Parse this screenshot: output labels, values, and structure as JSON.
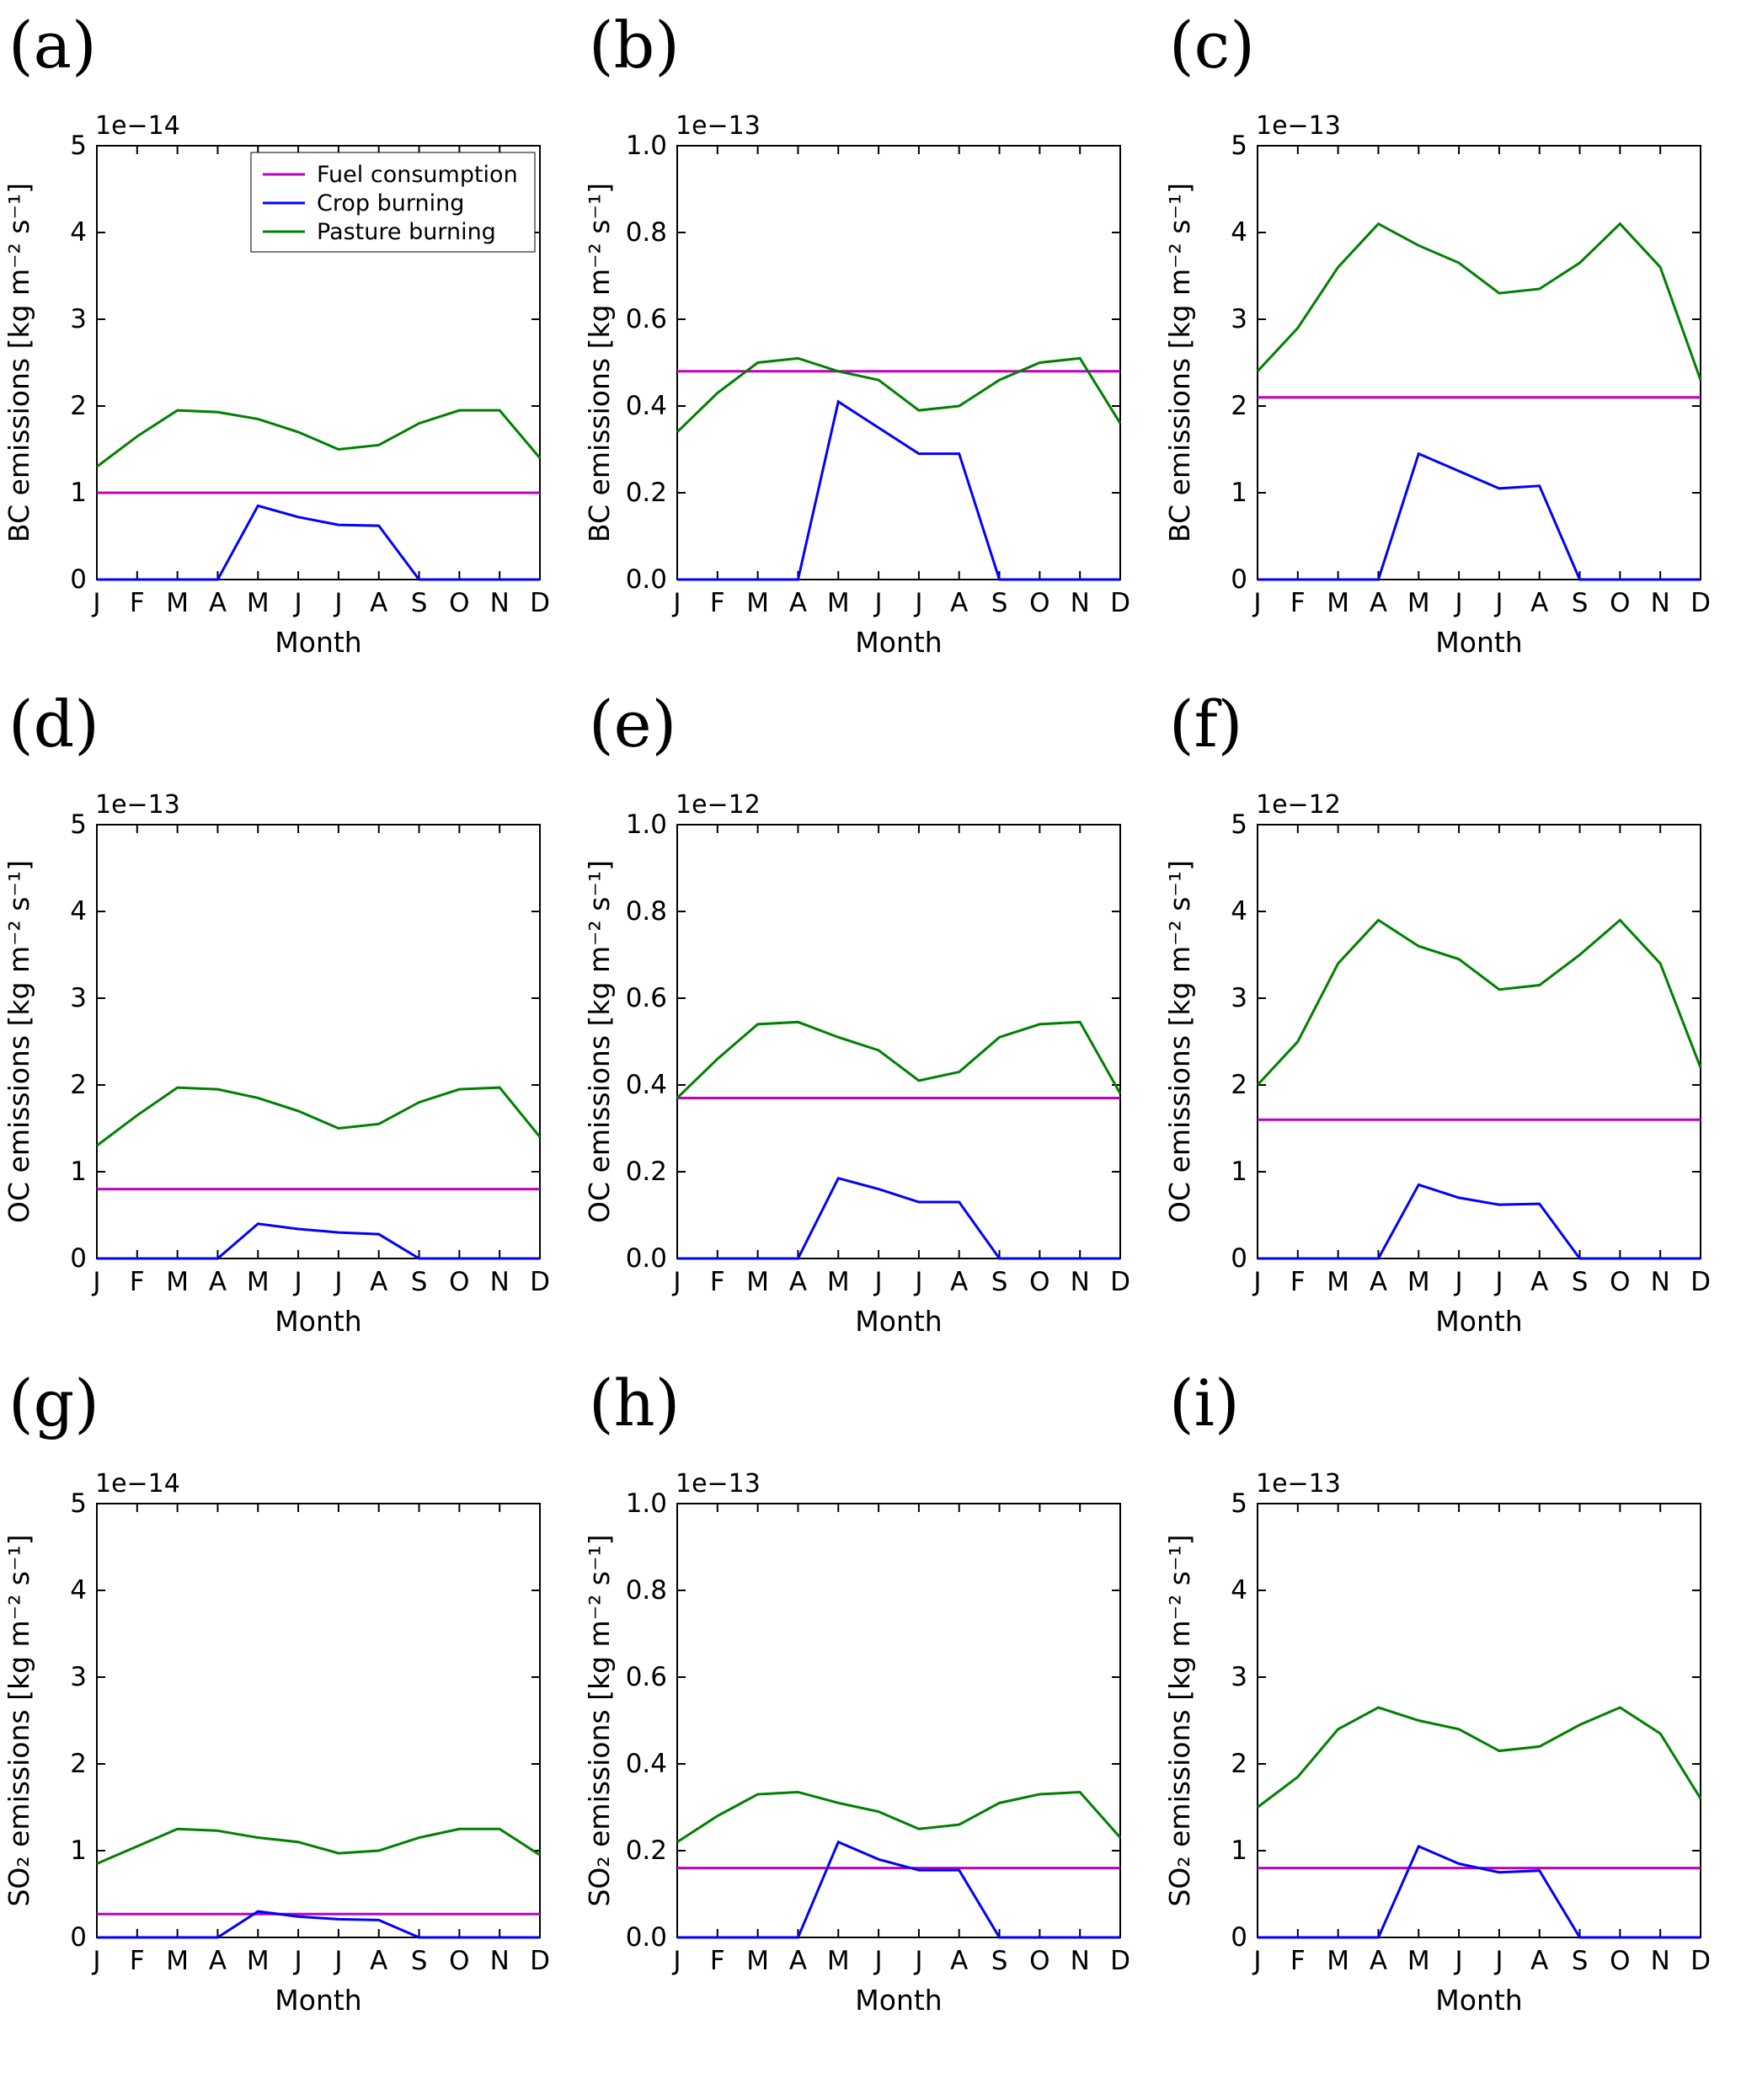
{
  "figure": {
    "months": [
      "J",
      "F",
      "M",
      "A",
      "M",
      "J",
      "J",
      "A",
      "S",
      "O",
      "N",
      "D"
    ],
    "xlabel": "Month",
    "legend_entries": [
      {
        "label": "Fuel consumption",
        "color": "#bf00bf"
      },
      {
        "label": "Crop burning",
        "color": "#0000ff"
      },
      {
        "label": "Pasture burning",
        "color": "#008000"
      }
    ],
    "colors": {
      "fuel": "#bf00bf",
      "crop": "#0000ff",
      "pasture": "#008000",
      "axis": "#000000"
    }
  },
  "chart_data": [
    {
      "panel": "(a)",
      "type": "line",
      "ylabel": "BC emissions [kg m⁻² s⁻¹]",
      "scale_label": "1e−14",
      "ylim": [
        0,
        5
      ],
      "yticks": [
        0,
        1,
        2,
        3,
        4,
        5
      ],
      "ytick_labels": [
        "0",
        "1",
        "2",
        "3",
        "4",
        "5"
      ],
      "legend": true,
      "series": [
        {
          "name": "Fuel consumption",
          "color": "#bf00bf",
          "constant": 1.0
        },
        {
          "name": "Crop burning",
          "color": "#0000ff",
          "values": [
            0,
            0,
            0,
            0,
            0.85,
            0.72,
            0.63,
            0.62,
            0,
            0,
            0,
            0
          ]
        },
        {
          "name": "Pasture burning",
          "color": "#008000",
          "values": [
            1.3,
            1.65,
            1.95,
            1.93,
            1.85,
            1.7,
            1.5,
            1.55,
            1.8,
            1.95,
            1.95,
            1.4
          ]
        }
      ]
    },
    {
      "panel": "(b)",
      "type": "line",
      "ylabel": "BC emissions [kg m⁻² s⁻¹]",
      "scale_label": "1e−13",
      "ylim": [
        0,
        1
      ],
      "yticks": [
        0,
        0.2,
        0.4,
        0.6,
        0.8,
        1.0
      ],
      "ytick_labels": [
        "0.0",
        "0.2",
        "0.4",
        "0.6",
        "0.8",
        "1.0"
      ],
      "legend": false,
      "series": [
        {
          "name": "Fuel consumption",
          "color": "#bf00bf",
          "constant": 0.48
        },
        {
          "name": "Crop burning",
          "color": "#0000ff",
          "values": [
            0,
            0,
            0,
            0,
            0.41,
            0.35,
            0.29,
            0.29,
            0,
            0,
            0,
            0
          ]
        },
        {
          "name": "Pasture burning",
          "color": "#008000",
          "values": [
            0.34,
            0.43,
            0.5,
            0.51,
            0.48,
            0.46,
            0.39,
            0.4,
            0.46,
            0.5,
            0.51,
            0.36
          ]
        }
      ]
    },
    {
      "panel": "(c)",
      "type": "line",
      "ylabel": "BC emissions [kg m⁻² s⁻¹]",
      "scale_label": "1e−13",
      "ylim": [
        0,
        5
      ],
      "yticks": [
        0,
        1,
        2,
        3,
        4,
        5
      ],
      "ytick_labels": [
        "0",
        "1",
        "2",
        "3",
        "4",
        "5"
      ],
      "legend": false,
      "series": [
        {
          "name": "Fuel consumption",
          "color": "#bf00bf",
          "constant": 2.1
        },
        {
          "name": "Crop burning",
          "color": "#0000ff",
          "values": [
            0,
            0,
            0,
            0,
            1.45,
            1.25,
            1.05,
            1.08,
            0,
            0,
            0,
            0
          ]
        },
        {
          "name": "Pasture burning",
          "color": "#008000",
          "values": [
            2.4,
            2.9,
            3.6,
            4.1,
            3.85,
            3.65,
            3.3,
            3.35,
            3.65,
            4.1,
            3.6,
            2.3
          ]
        }
      ]
    },
    {
      "panel": "(d)",
      "type": "line",
      "ylabel": "OC emissions [kg m⁻² s⁻¹]",
      "scale_label": "1e−13",
      "ylim": [
        0,
        5
      ],
      "yticks": [
        0,
        1,
        2,
        3,
        4,
        5
      ],
      "ytick_labels": [
        "0",
        "1",
        "2",
        "3",
        "4",
        "5"
      ],
      "legend": false,
      "series": [
        {
          "name": "Fuel consumption",
          "color": "#bf00bf",
          "constant": 0.8
        },
        {
          "name": "Crop burning",
          "color": "#0000ff",
          "values": [
            0,
            0,
            0,
            0,
            0.4,
            0.34,
            0.3,
            0.28,
            0,
            0,
            0,
            0
          ]
        },
        {
          "name": "Pasture burning",
          "color": "#008000",
          "values": [
            1.3,
            1.65,
            1.97,
            1.95,
            1.85,
            1.7,
            1.5,
            1.55,
            1.8,
            1.95,
            1.97,
            1.4
          ]
        }
      ]
    },
    {
      "panel": "(e)",
      "type": "line",
      "ylabel": "OC emissions [kg m⁻² s⁻¹]",
      "scale_label": "1e−12",
      "ylim": [
        0,
        1
      ],
      "yticks": [
        0,
        0.2,
        0.4,
        0.6,
        0.8,
        1.0
      ],
      "ytick_labels": [
        "0.0",
        "0.2",
        "0.4",
        "0.6",
        "0.8",
        "1.0"
      ],
      "legend": false,
      "series": [
        {
          "name": "Fuel consumption",
          "color": "#bf00bf",
          "constant": 0.37
        },
        {
          "name": "Crop burning",
          "color": "#0000ff",
          "values": [
            0,
            0,
            0,
            0,
            0.185,
            0.16,
            0.13,
            0.13,
            0,
            0,
            0,
            0
          ]
        },
        {
          "name": "Pasture burning",
          "color": "#008000",
          "values": [
            0.37,
            0.46,
            0.54,
            0.545,
            0.51,
            0.48,
            0.41,
            0.43,
            0.51,
            0.54,
            0.545,
            0.38
          ]
        }
      ]
    },
    {
      "panel": "(f)",
      "type": "line",
      "ylabel": "OC emissions [kg m⁻² s⁻¹]",
      "scale_label": "1e−12",
      "ylim": [
        0,
        5
      ],
      "yticks": [
        0,
        1,
        2,
        3,
        4,
        5
      ],
      "ytick_labels": [
        "0",
        "1",
        "2",
        "3",
        "4",
        "5"
      ],
      "legend": false,
      "series": [
        {
          "name": "Fuel consumption",
          "color": "#bf00bf",
          "constant": 1.6
        },
        {
          "name": "Crop burning",
          "color": "#0000ff",
          "values": [
            0,
            0,
            0,
            0,
            0.85,
            0.7,
            0.62,
            0.63,
            0,
            0,
            0,
            0
          ]
        },
        {
          "name": "Pasture burning",
          "color": "#008000",
          "values": [
            2.0,
            2.5,
            3.4,
            3.9,
            3.6,
            3.45,
            3.1,
            3.15,
            3.5,
            3.9,
            3.4,
            2.2
          ]
        }
      ]
    },
    {
      "panel": "(g)",
      "type": "line",
      "ylabel": "SO₂ emissions [kg m⁻² s⁻¹]",
      "scale_label": "1e−14",
      "ylim": [
        0,
        5
      ],
      "yticks": [
        0,
        1,
        2,
        3,
        4,
        5
      ],
      "ytick_labels": [
        "0",
        "1",
        "2",
        "3",
        "4",
        "5"
      ],
      "legend": false,
      "series": [
        {
          "name": "Fuel consumption",
          "color": "#bf00bf",
          "constant": 0.27
        },
        {
          "name": "Crop burning",
          "color": "#0000ff",
          "values": [
            0,
            0,
            0,
            0,
            0.3,
            0.24,
            0.21,
            0.2,
            0,
            0,
            0,
            0
          ]
        },
        {
          "name": "Pasture burning",
          "color": "#008000",
          "values": [
            0.85,
            1.05,
            1.25,
            1.23,
            1.15,
            1.1,
            0.97,
            1.0,
            1.15,
            1.25,
            1.25,
            0.95
          ]
        }
      ]
    },
    {
      "panel": "(h)",
      "type": "line",
      "ylabel": "SO₂ emissions [kg m⁻² s⁻¹]",
      "scale_label": "1e−13",
      "ylim": [
        0,
        1
      ],
      "yticks": [
        0,
        0.2,
        0.4,
        0.6,
        0.8,
        1.0
      ],
      "ytick_labels": [
        "0.0",
        "0.2",
        "0.4",
        "0.6",
        "0.8",
        "1.0"
      ],
      "legend": false,
      "series": [
        {
          "name": "Fuel consumption",
          "color": "#bf00bf",
          "constant": 0.16
        },
        {
          "name": "Crop burning",
          "color": "#0000ff",
          "values": [
            0,
            0,
            0,
            0,
            0.22,
            0.18,
            0.155,
            0.155,
            0,
            0,
            0,
            0
          ]
        },
        {
          "name": "Pasture burning",
          "color": "#008000",
          "values": [
            0.22,
            0.28,
            0.33,
            0.335,
            0.31,
            0.29,
            0.25,
            0.26,
            0.31,
            0.33,
            0.335,
            0.23
          ]
        }
      ]
    },
    {
      "panel": "(i)",
      "type": "line",
      "ylabel": "SO₂ emissions [kg m⁻² s⁻¹]",
      "scale_label": "1e−13",
      "ylim": [
        0,
        5
      ],
      "yticks": [
        0,
        1,
        2,
        3,
        4,
        5
      ],
      "ytick_labels": [
        "0",
        "1",
        "2",
        "3",
        "4",
        "5"
      ],
      "legend": false,
      "series": [
        {
          "name": "Fuel consumption",
          "color": "#bf00bf",
          "constant": 0.8
        },
        {
          "name": "Crop burning",
          "color": "#0000ff",
          "values": [
            0,
            0,
            0,
            0,
            1.05,
            0.85,
            0.75,
            0.77,
            0,
            0,
            0,
            0
          ]
        },
        {
          "name": "Pasture burning",
          "color": "#008000",
          "values": [
            1.5,
            1.85,
            2.4,
            2.65,
            2.5,
            2.4,
            2.15,
            2.2,
            2.45,
            2.65,
            2.35,
            1.6
          ]
        }
      ]
    }
  ]
}
